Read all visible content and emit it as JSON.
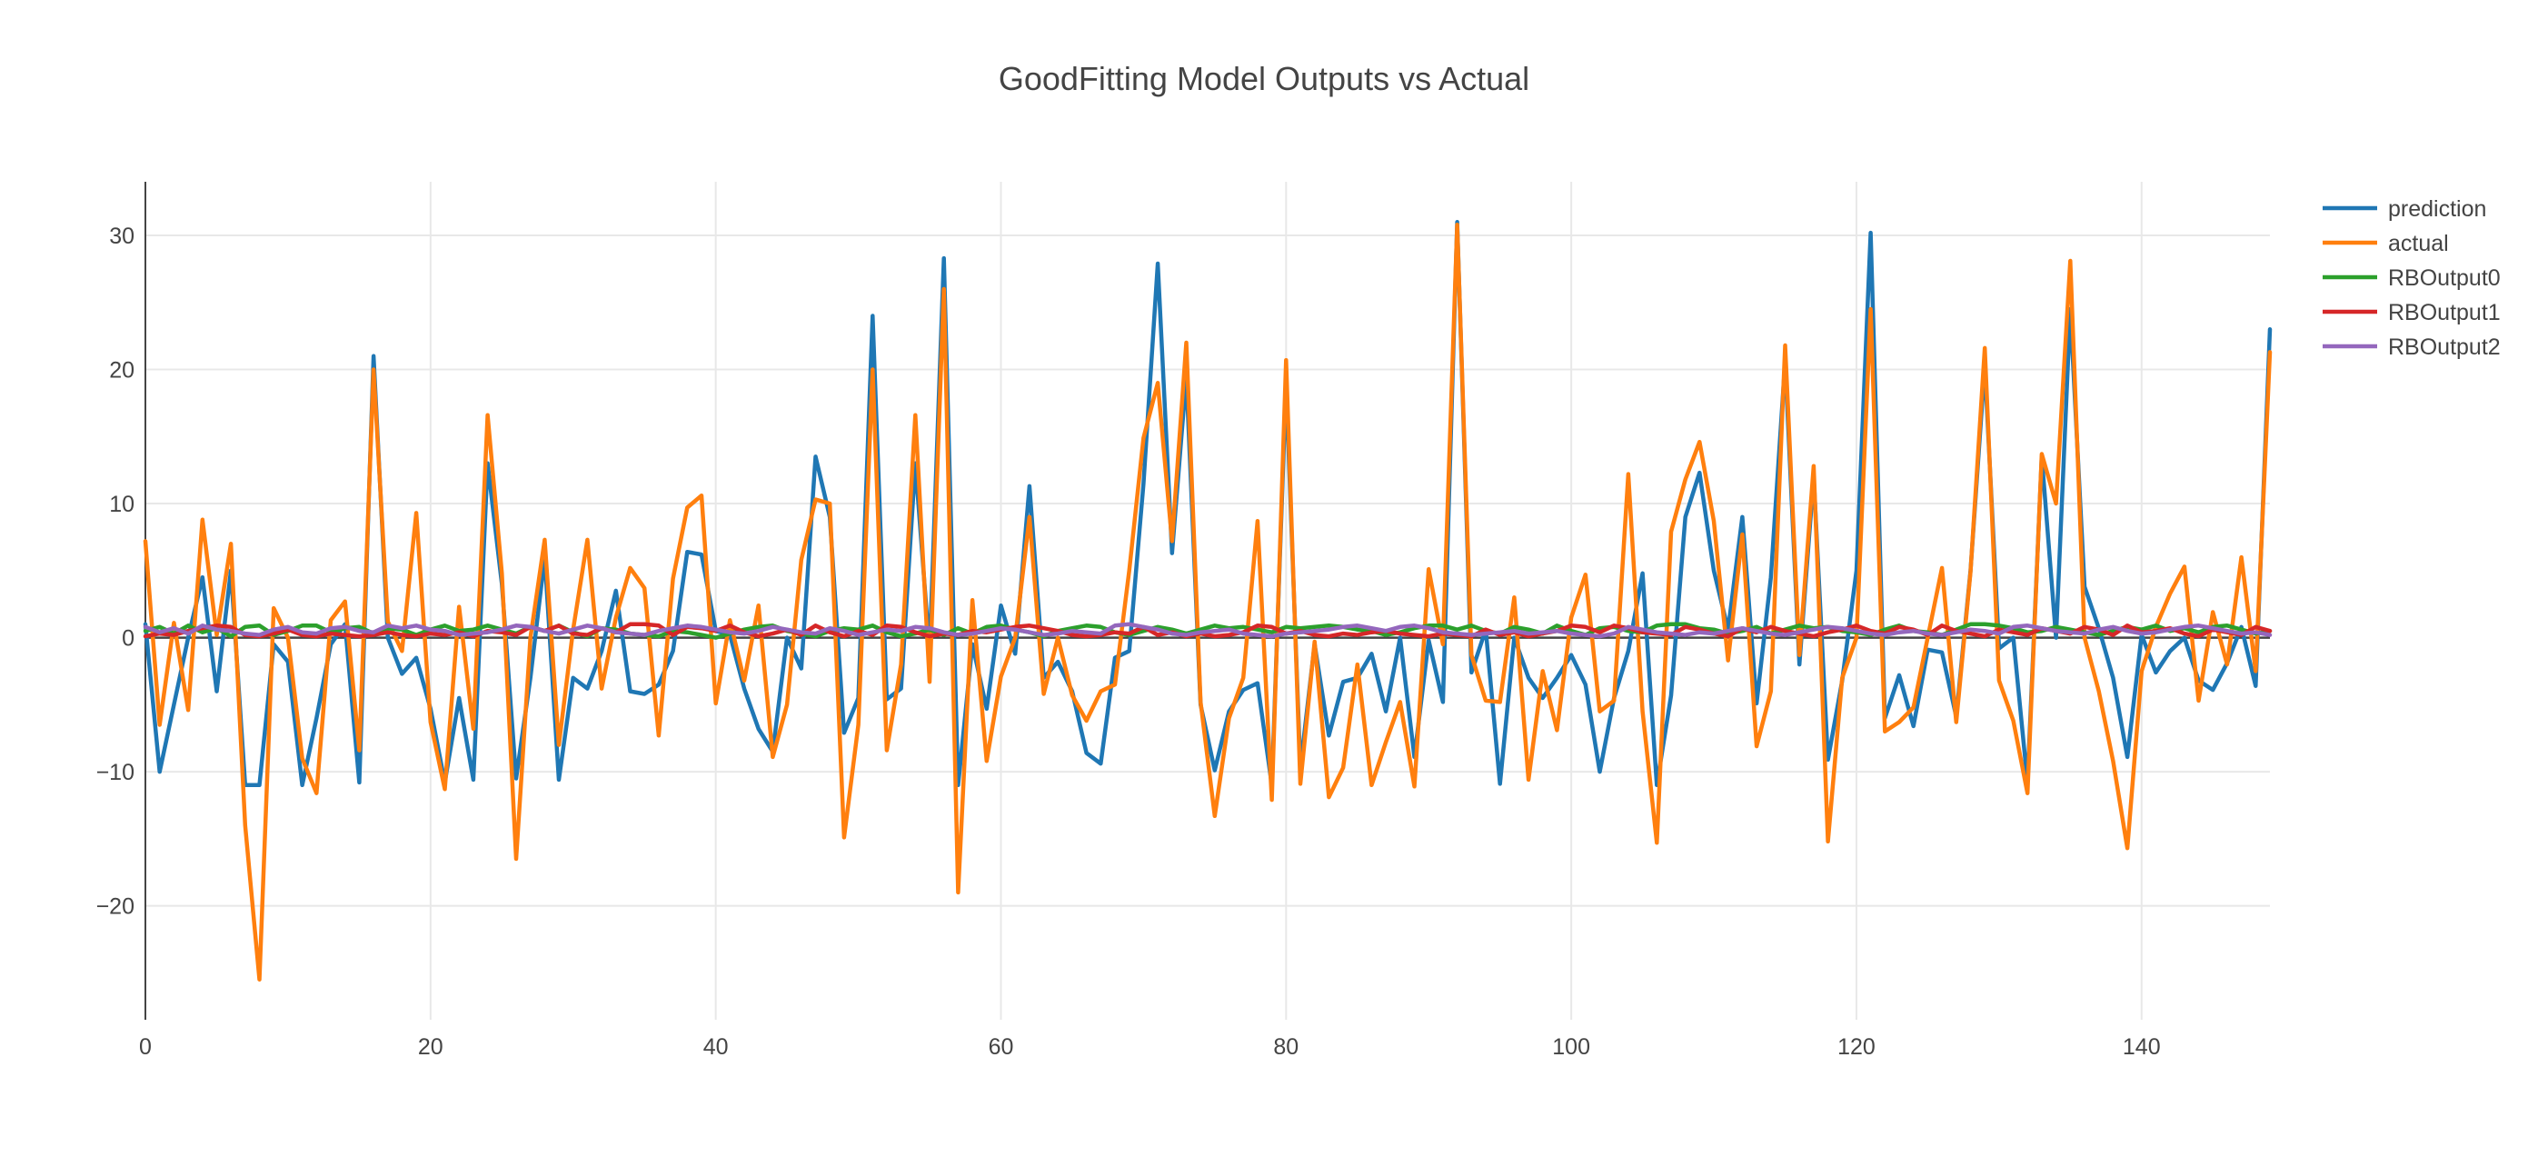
{
  "chart_data": {
    "type": "line",
    "title": "GoodFitting Model Outputs vs Actual",
    "xlabel": "",
    "ylabel": "",
    "xlim": [
      0,
      149
    ],
    "ylim": [
      -28.5,
      34
    ],
    "x_ticks": [
      0,
      20,
      40,
      60,
      80,
      100,
      120,
      140
    ],
    "y_ticks": [
      30,
      20,
      10,
      0,
      -10,
      -20
    ],
    "y_tick_labels": [
      "30",
      "20",
      "10",
      "0",
      "−10",
      "−20"
    ],
    "grid": true,
    "legend_position": "top-right",
    "x": [
      0,
      1,
      2,
      3,
      4,
      5,
      6,
      7,
      8,
      9,
      10,
      11,
      12,
      13,
      14,
      15,
      16,
      17,
      18,
      19,
      20,
      21,
      22,
      23,
      24,
      25,
      26,
      27,
      28,
      29,
      30,
      31,
      32,
      33,
      34,
      35,
      36,
      37,
      38,
      39,
      40,
      41,
      42,
      43,
      44,
      45,
      46,
      47,
      48,
      49,
      50,
      51,
      52,
      53,
      54,
      55,
      56,
      57,
      58,
      59,
      60,
      61,
      62,
      63,
      64,
      65,
      66,
      67,
      68,
      69,
      70,
      71,
      72,
      73,
      74,
      75,
      76,
      77,
      78,
      79,
      80,
      81,
      82,
      83,
      84,
      85,
      86,
      87,
      88,
      89,
      90,
      91,
      92,
      93,
      94,
      95,
      96,
      97,
      98,
      99,
      100,
      101,
      102,
      103,
      104,
      105,
      106,
      107,
      108,
      109,
      110,
      111,
      112,
      113,
      114,
      115,
      116,
      117,
      118,
      119,
      120,
      121,
      122,
      123,
      124,
      125,
      126,
      127,
      128,
      129,
      130,
      131,
      132,
      133,
      134,
      135,
      136,
      137,
      138,
      139,
      140,
      141,
      142,
      143,
      144,
      145,
      146,
      147,
      148,
      149
    ],
    "series": [
      {
        "name": "prediction",
        "color": "#1f77b4",
        "values": [
          1,
          -10,
          -5,
          0,
          4.5,
          -4,
          5,
          -11,
          -11,
          -0.5,
          -1.8,
          -11,
          -6,
          -0.5,
          1,
          -10.8,
          21,
          0,
          -2.7,
          -1.5,
          -5.3,
          -10.8,
          -4.5,
          -10.6,
          13,
          4,
          -10.5,
          -3,
          6,
          -10.6,
          -3,
          -3.8,
          -1,
          3.5,
          -4,
          -4.2,
          -3.5,
          -1,
          6.4,
          6.2,
          0.5,
          0.2,
          -3.8,
          -6.8,
          -8.5,
          0,
          -2.3,
          13.5,
          9,
          -7.1,
          -4.5,
          24,
          -4.6,
          -3.8,
          13,
          -1,
          28.3,
          -11,
          -0.5,
          -5.3,
          2.4,
          -1.2,
          11.3,
          -3,
          -1.8,
          -4,
          -8.6,
          -9.4,
          -1.5,
          -1,
          11.5,
          27.9,
          6.3,
          19.5,
          -5,
          -9.9,
          -5.5,
          -3.9,
          -3.4,
          -11,
          19,
          -9.7,
          -0.5,
          -7.3,
          -3.3,
          -3,
          -1.2,
          -5.5,
          0,
          -8.9,
          -0.2,
          -4.8,
          31,
          -2.6,
          0.6,
          -10.9,
          0,
          -3,
          -4.5,
          -3,
          -1.3,
          -3.5,
          -10,
          -4.5,
          -1,
          4.8,
          -11,
          -4.3,
          9,
          12.3,
          5,
          0.6,
          9,
          -4.9,
          4.5,
          20.6,
          -2,
          12,
          -9.1,
          -3.2,
          5,
          30.2,
          -6,
          -2.8,
          -6.6,
          -0.9,
          -1.1,
          -5.9,
          5,
          20.3,
          -0.8,
          0,
          -10.8,
          13.5,
          0,
          24.5,
          3.8,
          0.7,
          -3,
          -8.9,
          0.2,
          -2.6,
          -1,
          0,
          -3.2,
          -3.9,
          -1.9,
          0.8,
          -3.6,
          23
        ]
      },
      {
        "name": "actual",
        "color": "#ff7f0e",
        "values": [
          7.2,
          -6.5,
          1.1,
          -5.4,
          8.8,
          0.2,
          7,
          -14,
          -25.5,
          2.2,
          0,
          -9,
          -11.6,
          1.3,
          2.7,
          -8.4,
          20,
          1.2,
          -1,
          9.3,
          -6.3,
          -11.3,
          2.3,
          -6.8,
          16.6,
          4.8,
          -16.5,
          0,
          7.3,
          -8,
          0.6,
          7.3,
          -3.8,
          1.5,
          5.2,
          3.7,
          -7.3,
          4.4,
          9.7,
          10.6,
          -4.9,
          1.3,
          -3.2,
          2.4,
          -8.9,
          -5,
          5.8,
          10.3,
          10,
          -14.9,
          -6.5,
          20,
          -8.4,
          -2,
          16.6,
          -3.3,
          26,
          -19,
          2.8,
          -9.2,
          -2.9,
          0,
          9,
          -4.2,
          0,
          -4.3,
          -6.2,
          -4,
          -3.5,
          5,
          14.9,
          19,
          7.2,
          22,
          -4.8,
          -13.3,
          -6,
          -3,
          8.7,
          -12.1,
          20.7,
          -10.9,
          -0.3,
          -11.9,
          -9.7,
          -2,
          -11,
          -7.8,
          -4.8,
          -11.1,
          5.1,
          -0.5,
          30.8,
          -1.3,
          -4.7,
          -4.8,
          3,
          -10.6,
          -2.5,
          -6.9,
          1.5,
          4.7,
          -5.5,
          -4.7,
          12.2,
          -5.5,
          -15.3,
          7.9,
          11.8,
          14.6,
          8.7,
          -1.7,
          7.7,
          -8.1,
          -4,
          21.8,
          -1.3,
          12.8,
          -15.2,
          -3,
          0,
          24.5,
          -7,
          -6.3,
          -5.2,
          0,
          5.2,
          -6.3,
          4.9,
          21.6,
          -3.2,
          -6.2,
          -11.6,
          13.7,
          10,
          28.1,
          0,
          -4,
          -9.2,
          -15.7,
          -2.5,
          0.8,
          3.3,
          5.3,
          -4.7,
          1.9,
          -2,
          6,
          -2.5,
          21.3
        ]
      },
      {
        "name": "RBOutput0",
        "color": "#2ca02c",
        "values": [
          0.5,
          0.8,
          0.3,
          0.9,
          0.4,
          0.7,
          0.1,
          0.8,
          0.9,
          0.2,
          0.5,
          0.9,
          0.9,
          0.4,
          0.7,
          0.8,
          0.3,
          0.7,
          0.6,
          0.2,
          0.6,
          0.9,
          0.5,
          0.6,
          0.9,
          0.6,
          0.3,
          0.8,
          0.5,
          0.9,
          0.4,
          0.1,
          0.7,
          0.6,
          0.3,
          0.2,
          0.1,
          0.5,
          0.4,
          0.2,
          0.0,
          0.3,
          0.6,
          0.8,
          0.9,
          0.5,
          0.3,
          0.1,
          0.5,
          0.7,
          0.6,
          0.9,
          0.4,
          0.1,
          0.3,
          0.6,
          0.2,
          0.7,
          0.3,
          0.8,
          0.9,
          0.6,
          0.4,
          0.1,
          0.5,
          0.7,
          0.9,
          0.8,
          0.4,
          0.2,
          0.5,
          0.8,
          0.6,
          0.3,
          0.6,
          0.9,
          0.7,
          0.8,
          0.6,
          0.4,
          0.8,
          0.7,
          0.8,
          0.9,
          0.8,
          0.6,
          0.5,
          0.2,
          0.4,
          0.7,
          0.9,
          0.9,
          0.6,
          0.9,
          0.5,
          0.3,
          0.8,
          0.6,
          0.3,
          0.9,
          0.5,
          0.2,
          0.7,
          0.8,
          0.5,
          0.4,
          0.9,
          1.0,
          1.0,
          0.7,
          0.6,
          0.3,
          0.5,
          0.8,
          0.3,
          0.6,
          0.9,
          0.7,
          0.8,
          0.5,
          0.4,
          0.2,
          0.6,
          0.9,
          0.5,
          0.4,
          0.2,
          0.6,
          1.0,
          1.0,
          0.9,
          0.7,
          0.4,
          0.5,
          0.8,
          0.6,
          0.4,
          0.2,
          0.5,
          0.8,
          0.6,
          0.9,
          0.5,
          0.7,
          0.4,
          0.8,
          0.9,
          0.6,
          0.3,
          0.5
        ]
      },
      {
        "name": "RBOutput1",
        "color": "#d62728",
        "values": [
          0.1,
          0.3,
          0.2,
          0.5,
          0.7,
          0.9,
          0.8,
          0.2,
          0.1,
          0.3,
          0.6,
          0.2,
          0.1,
          0.3,
          0.2,
          0.1,
          0.2,
          0.4,
          0.2,
          0.1,
          0.3,
          0.2,
          0.4,
          0.1,
          0.5,
          0.4,
          0.2,
          0.8,
          0.5,
          0.9,
          0.3,
          0.2,
          0.7,
          0.4,
          1.0,
          1.0,
          0.9,
          0.2,
          0.8,
          0.7,
          0.5,
          0.9,
          0.4,
          0.1,
          0.3,
          0.6,
          0.2,
          0.9,
          0.4,
          0.1,
          0.5,
          0.2,
          0.9,
          0.8,
          0.4,
          0.1,
          0.3,
          0.2,
          0.5,
          0.4,
          0.6,
          0.8,
          0.9,
          0.7,
          0.5,
          0.2,
          0.1,
          0.2,
          0.4,
          0.3,
          0.8,
          0.2,
          0.4,
          0.1,
          0.3,
          0.1,
          0.2,
          0.4,
          0.9,
          0.8,
          0.3,
          0.5,
          0.2,
          0.1,
          0.3,
          0.2,
          0.4,
          0.5,
          0.3,
          0.2,
          0.1,
          0.3,
          0.2,
          0.1,
          0.6,
          0.2,
          0.4,
          0.1,
          0.3,
          0.5,
          0.9,
          0.8,
          0.4,
          0.9,
          0.7,
          0.4,
          0.3,
          0.2,
          0.8,
          0.6,
          0.3,
          0.1,
          0.7,
          0.4,
          0.8,
          0.5,
          0.3,
          0.1,
          0.4,
          0.6,
          0.9,
          0.5,
          0.3,
          0.8,
          0.6,
          0.2,
          0.9,
          0.5,
          0.3,
          0.1,
          0.6,
          0.4,
          0.2,
          0.7,
          0.5,
          0.3,
          0.8,
          0.6,
          0.2,
          0.9,
          0.4,
          0.5,
          0.7,
          0.3,
          0.1,
          0.6,
          0.4,
          0.2,
          0.8,
          0.5
        ]
      },
      {
        "name": "RBOutput2",
        "color": "#9467bd",
        "values": [
          0.8,
          0.4,
          0.7,
          0.3,
          0.9,
          0.6,
          0.5,
          0.3,
          0.2,
          0.6,
          0.8,
          0.4,
          0.3,
          0.7,
          0.8,
          0.5,
          0.4,
          0.9,
          0.7,
          0.9,
          0.6,
          0.5,
          0.2,
          0.3,
          0.4,
          0.6,
          0.9,
          0.8,
          0.5,
          0.3,
          0.6,
          0.9,
          0.7,
          0.4,
          0.3,
          0.2,
          0.5,
          0.7,
          0.9,
          0.8,
          0.6,
          0.4,
          0.3,
          0.5,
          0.8,
          0.6,
          0.4,
          0.3,
          0.7,
          0.5,
          0.2,
          0.4,
          0.6,
          0.5,
          0.8,
          0.7,
          0.4,
          0.2,
          0.3,
          0.5,
          0.7,
          0.6,
          0.4,
          0.2,
          0.3,
          0.5,
          0.4,
          0.3,
          0.9,
          1.0,
          0.8,
          0.6,
          0.3,
          0.2,
          0.4,
          0.5,
          0.6,
          0.3,
          0.2,
          0.1,
          0.3,
          0.4,
          0.5,
          0.6,
          0.8,
          0.9,
          0.7,
          0.5,
          0.8,
          0.9,
          0.7,
          0.4,
          0.3,
          0.2,
          0.3,
          0.4,
          0.5,
          0.3,
          0.4,
          0.5,
          0.3,
          0.2,
          0.1,
          0.3,
          0.8,
          0.6,
          0.4,
          0.3,
          0.2,
          0.4,
          0.3,
          0.5,
          0.7,
          0.5,
          0.3,
          0.2,
          0.4,
          0.6,
          0.8,
          0.7,
          0.5,
          0.3,
          0.2,
          0.4,
          0.5,
          0.3,
          0.2,
          0.4,
          0.6,
          0.5,
          0.3,
          0.8,
          0.9,
          0.7,
          0.5,
          0.4,
          0.3,
          0.6,
          0.8,
          0.5,
          0.3,
          0.4,
          0.6,
          0.8,
          0.9,
          0.7,
          0.5,
          0.3,
          0.4,
          0.2
        ]
      }
    ]
  }
}
